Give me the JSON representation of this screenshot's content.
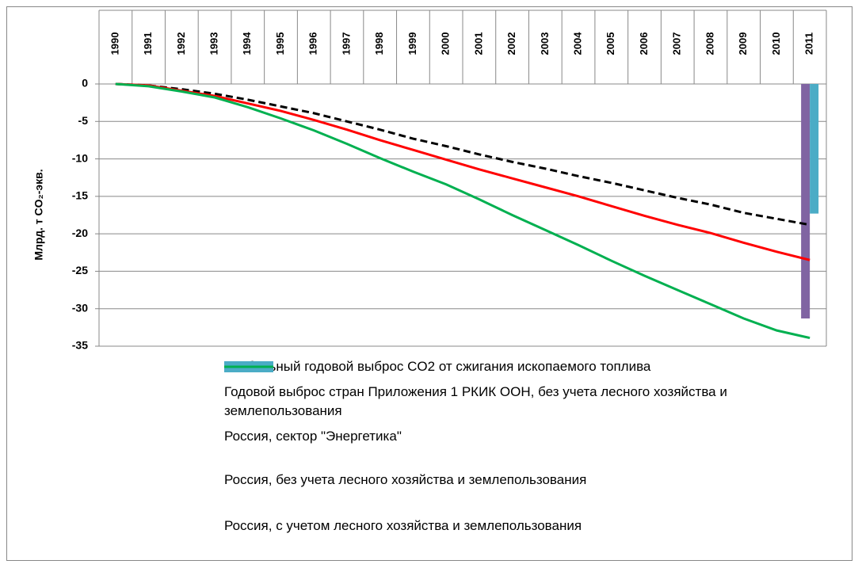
{
  "chart_data": {
    "type": "line",
    "ylabel": "Млрд. т CO₂-экв.",
    "categories": [
      "1990",
      "1991",
      "1992",
      "1993",
      "1994",
      "1995",
      "1996",
      "1997",
      "1998",
      "1999",
      "2000",
      "2001",
      "2002",
      "2003",
      "2004",
      "2005",
      "2006",
      "2007",
      "2008",
      "2009",
      "2010",
      "2011"
    ],
    "ylim": [
      -35,
      0
    ],
    "yticks": [
      0,
      -5,
      -10,
      -15,
      -20,
      -25,
      -30,
      -35
    ],
    "grid": true,
    "series": [
      {
        "name": "Глобальный годовой выброс CO2 от сжигания ископаемого топлива",
        "type": "bar",
        "color": "#8064a2",
        "values": [
          null,
          null,
          null,
          null,
          null,
          null,
          null,
          null,
          null,
          null,
          null,
          null,
          null,
          null,
          null,
          null,
          null,
          null,
          null,
          null,
          null,
          -31.3
        ]
      },
      {
        "name": "Годовой выброс стран Приложения 1 РКИК ООН, без учета лесного хозяйства и землепользования",
        "type": "bar",
        "color": "#4bacc6",
        "values": [
          null,
          null,
          null,
          null,
          null,
          null,
          null,
          null,
          null,
          null,
          null,
          null,
          null,
          null,
          null,
          null,
          null,
          null,
          null,
          null,
          null,
          -17.3
        ]
      },
      {
        "name": "Россия, сектор \"Энергетика\"",
        "type": "line",
        "color": "#000000",
        "dashed": true,
        "values": [
          0,
          -0.2,
          -0.7,
          -1.3,
          -2.1,
          -3.0,
          -3.9,
          -5.0,
          -6.1,
          -7.3,
          -8.3,
          -9.4,
          -10.4,
          -11.3,
          -12.3,
          -13.2,
          -14.2,
          -15.2,
          -16.1,
          -17.2,
          -18.0,
          -18.8
        ]
      },
      {
        "name": "Россия, без учета лесного хозяйства и землепользования",
        "type": "line",
        "color": "#ff0000",
        "values": [
          0,
          -0.2,
          -0.9,
          -1.6,
          -2.6,
          -3.6,
          -4.8,
          -6.1,
          -7.5,
          -8.8,
          -10.1,
          -11.4,
          -12.6,
          -13.8,
          -15.0,
          -16.3,
          -17.6,
          -18.8,
          -19.9,
          -21.2,
          -22.4,
          -23.5
        ]
      },
      {
        "name": "Россия, с учетом лесного хозяйства и землепользования",
        "type": "line",
        "color": "#00b050",
        "values": [
          0,
          -0.3,
          -1.0,
          -1.8,
          -3.1,
          -4.6,
          -6.2,
          -8.0,
          -9.9,
          -11.7,
          -13.4,
          -15.4,
          -17.5,
          -19.5,
          -21.5,
          -23.6,
          -25.6,
          -27.5,
          -29.4,
          -31.3,
          -32.9,
          -33.9
        ]
      }
    ]
  }
}
